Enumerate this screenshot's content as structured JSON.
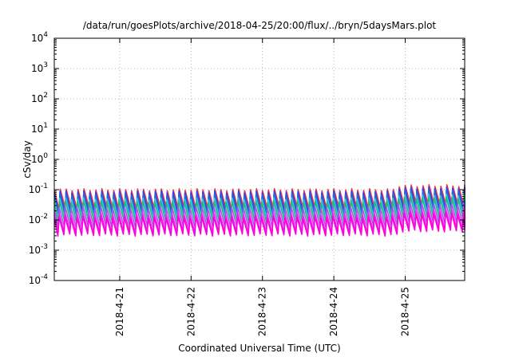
{
  "chart_data": {
    "type": "line",
    "title": "/data/run/goesPlots/archive/2018-04-25/20:00/flux/../bryn/5daysMars.plot",
    "xlabel": "Coordinated Universal Time (UTC)",
    "ylabel": "cSv/day",
    "yscale": "log",
    "ylim": [
      0.0001,
      10000
    ],
    "xlim": [
      "2018-04-20 02:00",
      "2018-04-25 20:00"
    ],
    "grid": true,
    "y_ticks": [
      {
        "base": "10",
        "exp": "-4",
        "value": 0.0001
      },
      {
        "base": "10",
        "exp": "-3",
        "value": 0.001
      },
      {
        "base": "10",
        "exp": "-2",
        "value": 0.01
      },
      {
        "base": "10",
        "exp": "-1",
        "value": 0.1
      },
      {
        "base": "10",
        "exp": "0",
        "value": 1
      },
      {
        "base": "10",
        "exp": "1",
        "value": 10
      },
      {
        "base": "10",
        "exp": "2",
        "value": 100
      },
      {
        "base": "10",
        "exp": "3",
        "value": 1000
      },
      {
        "base": "10",
        "exp": "4",
        "value": 10000
      }
    ],
    "x_ticks": [
      {
        "label": "2018-4-21",
        "value": "2018-04-21 00:00"
      },
      {
        "label": "2018-4-22",
        "value": "2018-04-22 00:00"
      },
      {
        "label": "2018-4-23",
        "value": "2018-04-23 00:00"
      },
      {
        "label": "2018-4-24",
        "value": "2018-04-24 00:00"
      },
      {
        "label": "2018-4-25",
        "value": "2018-04-25 00:00"
      }
    ],
    "sawtooth_period_hours": 2.0,
    "series": [
      {
        "color": "#ff3333",
        "peak": 0.1,
        "trough": 0.025
      },
      {
        "color": "#2244ff",
        "peak": 0.085,
        "trough": 0.018
      },
      {
        "color": "#3366cc",
        "peak": 0.07,
        "trough": 0.014
      },
      {
        "color": "#33ccdd",
        "peak": 0.05,
        "trough": 0.011
      },
      {
        "color": "#22bb88",
        "peak": 0.04,
        "trough": 0.009
      },
      {
        "color": "#aa55ee",
        "peak": 0.025,
        "trough": 0.006
      },
      {
        "color": "#ee22ee",
        "peak": 0.016,
        "trough": 0.004
      },
      {
        "color": "#ff00dd",
        "peak": 0.012,
        "trough": 0.0032
      }
    ],
    "late_period_boost": {
      "from": "2018-04-24 21:00",
      "factor": 1.35
    }
  }
}
